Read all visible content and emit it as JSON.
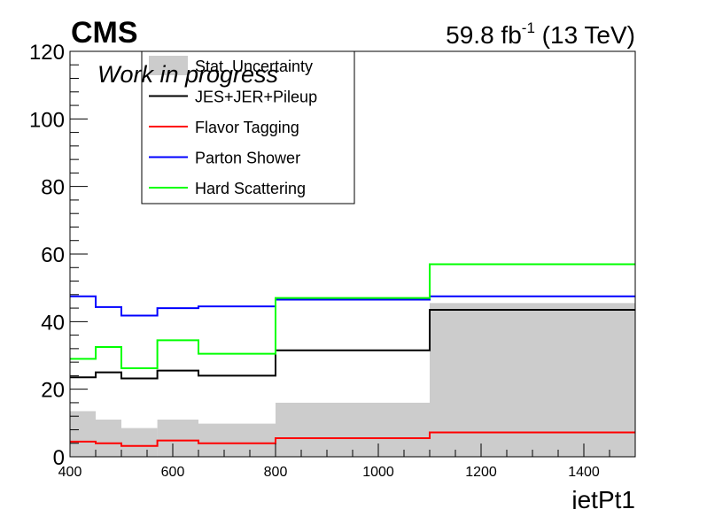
{
  "header": {
    "experiment": "CMS",
    "lumi_value": "59.8 fb",
    "lumi_exp": "-1",
    "lumi_energy": " (13 TeV)",
    "status": "Work in progress"
  },
  "chart_data": {
    "type": "line",
    "title": "",
    "xlabel": "jetPt1",
    "ylabel": "",
    "xlim": [
      400,
      1500
    ],
    "ylim": [
      0,
      120
    ],
    "x_ticks": [
      400,
      600,
      800,
      1000,
      1200,
      1400
    ],
    "y_ticks": [
      0,
      20,
      40,
      60,
      80,
      100,
      120
    ],
    "bin_edges": [
      400,
      450,
      500,
      570,
      650,
      800,
      1100,
      1500
    ],
    "legend_position": "top-left",
    "series": [
      {
        "name": "Stat. Uncertainty",
        "style": "fill",
        "color": "#cccccc",
        "values": [
          13.5,
          11.0,
          8.5,
          11.0,
          9.8,
          16.0,
          45.5
        ]
      },
      {
        "name": "JES+JER+Pileup",
        "style": "step",
        "color": "#000000",
        "values": [
          23.5,
          25.0,
          23.2,
          25.5,
          24.0,
          31.5,
          43.5
        ]
      },
      {
        "name": "Flavor Tagging",
        "style": "step",
        "color": "#ff0000",
        "values": [
          4.5,
          4.0,
          3.2,
          4.8,
          4.0,
          5.5,
          7.2
        ]
      },
      {
        "name": "Parton Shower",
        "style": "step",
        "color": "#0000ff",
        "values": [
          47.5,
          44.3,
          41.8,
          44.0,
          44.5,
          46.5,
          47.5
        ]
      },
      {
        "name": "Hard Scattering",
        "style": "step",
        "color": "#00ff00",
        "values": [
          29.0,
          32.5,
          26.2,
          34.5,
          30.5,
          47.0,
          57.0
        ]
      }
    ]
  }
}
